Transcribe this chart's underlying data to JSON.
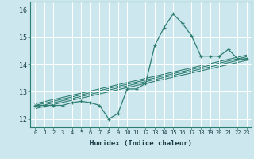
{
  "title": "",
  "xlabel": "Humidex (Indice chaleur)",
  "ylabel": "",
  "bg_color": "#cce8ee",
  "grid_color": "#ffffff",
  "line_color": "#2e7d72",
  "xlim": [
    -0.5,
    23.5
  ],
  "ylim": [
    11.7,
    16.3
  ],
  "xticks": [
    0,
    1,
    2,
    3,
    4,
    5,
    6,
    7,
    8,
    9,
    10,
    11,
    12,
    13,
    14,
    15,
    16,
    17,
    18,
    19,
    20,
    21,
    22,
    23
  ],
  "yticks": [
    12,
    13,
    14,
    15,
    16
  ],
  "main_data_x": [
    0,
    1,
    2,
    3,
    4,
    5,
    6,
    7,
    8,
    9,
    10,
    11,
    12,
    13,
    14,
    15,
    16,
    17,
    18,
    19,
    20,
    21,
    22,
    23
  ],
  "main_data_y": [
    12.5,
    12.5,
    12.5,
    12.5,
    12.6,
    12.65,
    12.6,
    12.5,
    12.0,
    12.2,
    13.1,
    13.1,
    13.3,
    14.7,
    15.35,
    15.85,
    15.5,
    15.05,
    14.3,
    14.3,
    14.3,
    14.55,
    14.2,
    14.2
  ],
  "reg_lines": [
    {
      "x0": 0,
      "y0": 12.38,
      "x1": 23,
      "y1": 14.15
    },
    {
      "x0": 0,
      "y0": 12.44,
      "x1": 23,
      "y1": 14.22
    },
    {
      "x0": 0,
      "y0": 12.5,
      "x1": 23,
      "y1": 14.28
    },
    {
      "x0": 0,
      "y0": 12.56,
      "x1": 23,
      "y1": 14.34
    }
  ]
}
